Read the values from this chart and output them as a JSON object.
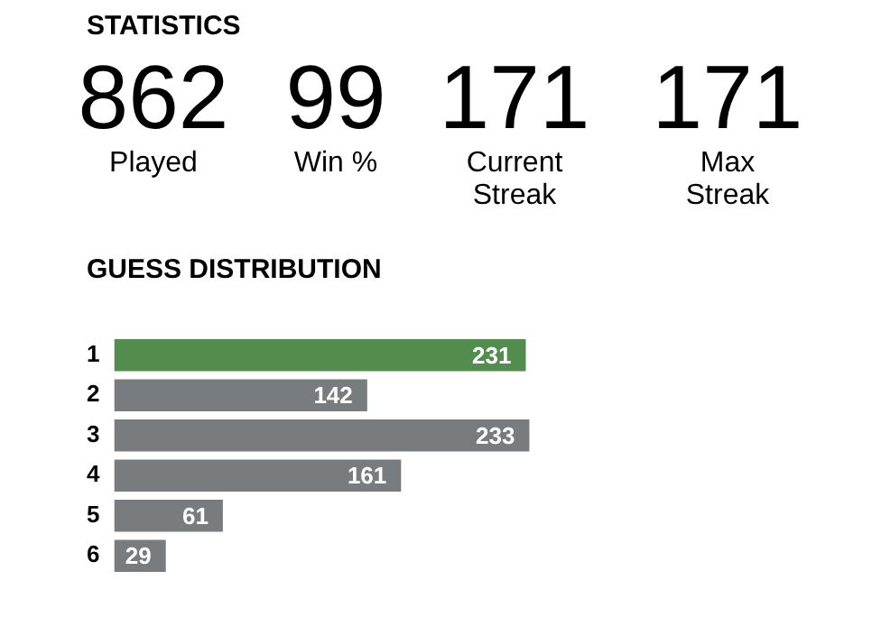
{
  "chart_data": [
    {
      "type": "other",
      "title": "STATISTICS",
      "annotations": [
        "862",
        "Played",
        "99",
        "Win %",
        "171",
        "Current Streak",
        "171",
        "Max Streak"
      ]
    },
    {
      "type": "bar",
      "title": "GUESS DISTRIBUTION",
      "orientation": "horizontal",
      "categories": [
        "1",
        "2",
        "3",
        "4",
        "5",
        "6"
      ],
      "values": [
        231,
        142,
        233,
        161,
        61,
        29
      ],
      "colors": [
        "#538d4e",
        "#787c7e",
        "#787c7e",
        "#787c7e",
        "#787c7e",
        "#787c7e"
      ],
      "data_labels": true,
      "grid": false,
      "legend": false,
      "tick_labels": "y"
    }
  ]
}
